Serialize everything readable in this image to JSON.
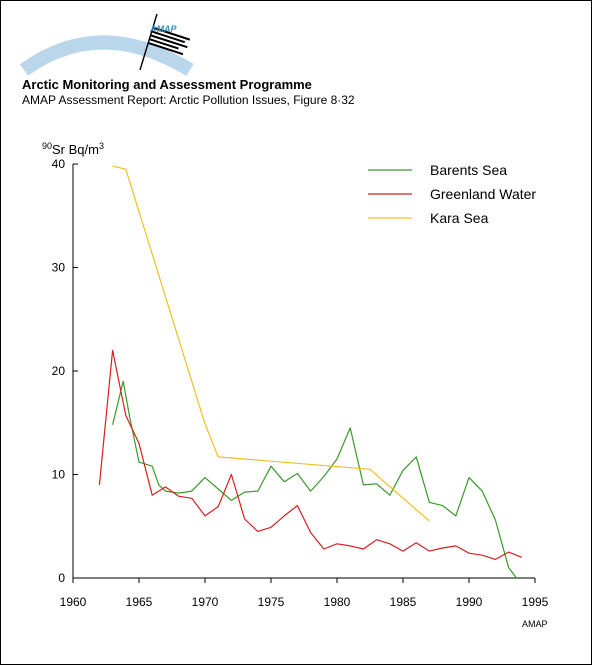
{
  "header": {
    "logo_text": "AMAP",
    "org_title": "Arctic Monitoring and Assessment Programme",
    "subtitle": "AMAP Assessment Report: Arctic Pollution Issues, Figure 8·32",
    "credit": "AMAP",
    "colors": {
      "logo_arc": "#b9d6ea",
      "logo_text": "#3a8fc0"
    }
  },
  "chart_data": {
    "type": "line",
    "title": "",
    "xlabel": "",
    "ylabel": "⁹⁰Sr Bq/m³",
    "ylabel_parts": {
      "sup1": "90",
      "main": "Sr Bq/m",
      "sup2": "3"
    },
    "xlim": [
      1960,
      1995
    ],
    "ylim": [
      0,
      40
    ],
    "xticks": [
      1960,
      1965,
      1970,
      1975,
      1980,
      1985,
      1990,
      1995
    ],
    "yticks": [
      0,
      10,
      20,
      30,
      40
    ],
    "grid": false,
    "legend_position": "top-right",
    "series": [
      {
        "name": "Barents Sea",
        "color": "#3a9a2a",
        "x": [
          1963,
          1963.8,
          1964.3,
          1965,
          1966,
          1966.5,
          1967,
          1968,
          1969,
          1970,
          1971,
          1972,
          1973,
          1974,
          1975,
          1976,
          1977,
          1978,
          1979,
          1980,
          1981,
          1982,
          1983,
          1984,
          1985,
          1986,
          1987,
          1988,
          1989,
          1990,
          1991,
          1992,
          1993,
          1993.6
        ],
        "y": [
          14.8,
          19.0,
          15.5,
          11.2,
          10.8,
          9.0,
          8.4,
          8.2,
          8.4,
          9.7,
          8.6,
          7.5,
          8.3,
          8.4,
          10.8,
          9.3,
          10.1,
          8.4,
          9.8,
          11.5,
          14.5,
          9.0,
          9.1,
          8.0,
          10.4,
          11.7,
          7.3,
          7.0,
          6.0,
          9.7,
          8.4,
          5.6,
          1.0,
          0.0
        ]
      },
      {
        "name": "Greenland Water",
        "color": "#d42020",
        "x": [
          1962,
          1963,
          1964,
          1965,
          1966,
          1967,
          1968,
          1969,
          1970,
          1971,
          1972,
          1973,
          1974,
          1975,
          1976,
          1977,
          1978,
          1979,
          1980,
          1981,
          1982,
          1983,
          1984,
          1985,
          1986,
          1987,
          1988,
          1989,
          1990,
          1991,
          1992,
          1993,
          1994
        ],
        "y": [
          9.0,
          22.0,
          15.7,
          13.0,
          8.0,
          8.8,
          7.9,
          7.7,
          6.0,
          6.9,
          10.0,
          5.7,
          4.5,
          4.9,
          6.0,
          7.0,
          4.4,
          2.8,
          3.3,
          3.1,
          2.8,
          3.7,
          3.3,
          2.6,
          3.4,
          2.6,
          2.9,
          3.1,
          2.4,
          2.2,
          1.8,
          2.5,
          2.0
        ]
      },
      {
        "name": "Kara Sea",
        "color": "#f0c020",
        "x": [
          1963,
          1964,
          1970,
          1971,
          1982.5,
          1987
        ],
        "y": [
          39.8,
          39.5,
          14.9,
          11.7,
          10.5,
          5.5
        ]
      }
    ]
  }
}
